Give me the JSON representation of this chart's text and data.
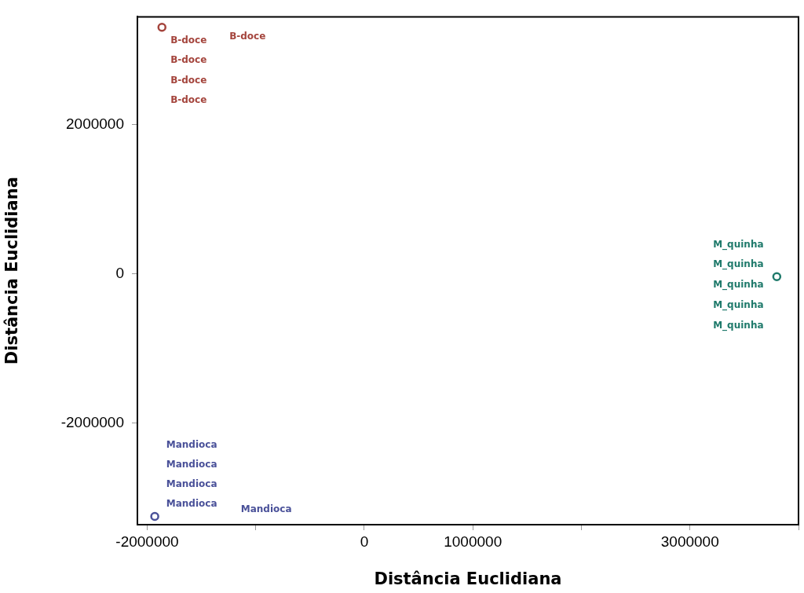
{
  "chart_data": {
    "type": "scatter",
    "xlabel": "Distância Euclidiana",
    "ylabel": "Distância Euclidiana",
    "xlim": [
      -2090000,
      4000000
    ],
    "ylim": [
      -3360000,
      3440000
    ],
    "xticks": [
      -2000000,
      {
        "value": -1000000,
        "label": null
      },
      0,
      1000000,
      {
        "value": 2000000,
        "label": null
      },
      3000000,
      {
        "value": 4000000,
        "label": null
      }
    ],
    "yticks": [
      -2000000,
      0,
      2000000
    ],
    "grid": false,
    "legend": false,
    "marker": "circle",
    "series": [
      {
        "color": "#a4443c",
        "x": [
          -1864000
        ],
        "values": [
          3300000
        ]
      },
      {
        "color": "#1f7a6b",
        "x": [
          3800000
        ],
        "values": [
          -40000
        ]
      },
      {
        "color": "#4a5199",
        "x": [
          -1930000
        ],
        "values": [
          -3250000
        ]
      }
    ],
    "annotations": [
      "B-doce",
      "B-doce",
      "B-doce",
      "B-doce",
      "B-doce",
      "M_quinha",
      "M_quinha",
      "M_quinha",
      "M_quinha",
      "M_quinha",
      "Mandioca",
      "Mandioca",
      "Mandioca",
      "Mandioca",
      "Mandioca"
    ]
  }
}
